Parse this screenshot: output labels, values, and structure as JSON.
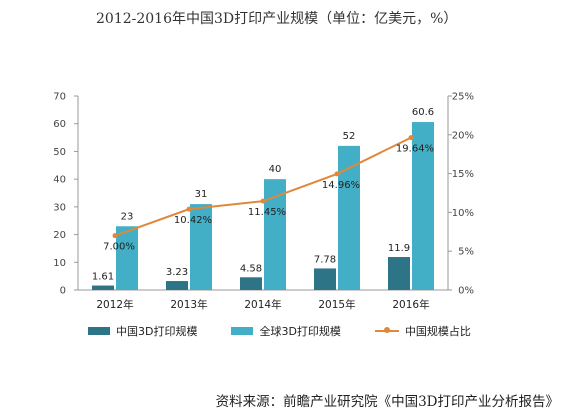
{
  "chart_data": {
    "type": "bar",
    "title": "2012-2016年中国3D打印产业规模（单位：亿美元，%）",
    "categories": [
      "2012年",
      "2013年",
      "2014年",
      "2015年",
      "2016年"
    ],
    "series": [
      {
        "name": "中国3D打印规模",
        "type": "bar",
        "axis": "left",
        "color": "#2e7487",
        "values": [
          1.61,
          3.23,
          4.58,
          7.78,
          11.9
        ],
        "labels": [
          "1.61",
          "3.23",
          "4.58",
          "7.78",
          "11.9"
        ]
      },
      {
        "name": "全球3D打印规模",
        "type": "bar",
        "axis": "left",
        "color": "#43afc6",
        "values": [
          23,
          31,
          40,
          52,
          60.6
        ],
        "labels": [
          "23",
          "31",
          "40",
          "52",
          "60.6"
        ]
      },
      {
        "name": "中国规模占比",
        "type": "line",
        "axis": "right",
        "color": "#e0883a",
        "values": [
          7.0,
          10.42,
          11.45,
          14.96,
          19.64
        ],
        "labels": [
          "7.00%",
          "10.42%",
          "11.45%",
          "14.96%",
          "19.64%"
        ]
      }
    ],
    "y_left": {
      "min": 0,
      "max": 70,
      "ticks": [
        "0",
        "10",
        "20",
        "30",
        "40",
        "50",
        "60",
        "70"
      ]
    },
    "y_right": {
      "min": 0,
      "max": 25,
      "ticks": [
        "0%",
        "5%",
        "10%",
        "15%",
        "20%",
        "25%"
      ]
    },
    "legend_position": "bottom",
    "grid": false
  },
  "source": "资料来源：前瞻产业研究院《中国3D打印产业分析报告》"
}
